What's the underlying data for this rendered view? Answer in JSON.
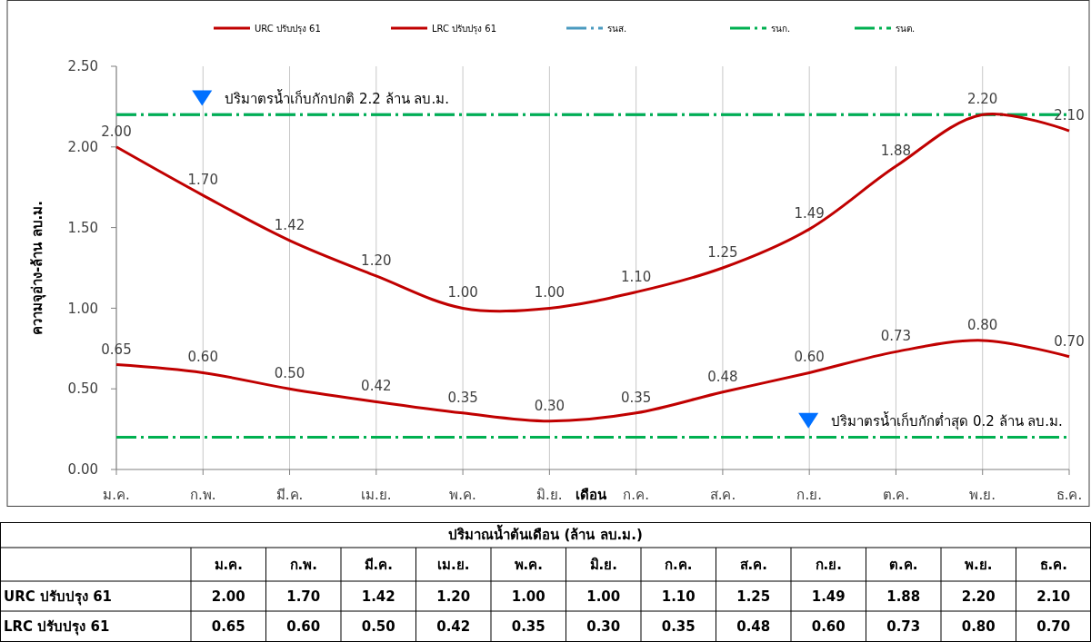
{
  "chart_data": {
    "type": "line",
    "xlabel": "เดือน",
    "ylabel": "ความจุอ่าง-ล้าน ลบ.ม.",
    "categories": [
      "ม.ค.",
      "ก.พ.",
      "มี.ค.",
      "เม.ย.",
      "พ.ค.",
      "มิ.ย.",
      "ก.ค.",
      "ส.ค.",
      "ก.ย.",
      "ต.ค.",
      "พ.ย.",
      "ธ.ค."
    ],
    "series": [
      {
        "name": "URC ปรับปรุง 61",
        "color": "#c00000",
        "values": [
          2.0,
          1.7,
          1.42,
          1.2,
          1.0,
          1.0,
          1.1,
          1.25,
          1.49,
          1.88,
          2.2,
          2.1
        ],
        "value_labels": [
          "2.00",
          "1.70",
          "1.42",
          "1.20",
          "1.00",
          "1.00",
          "1.10",
          "1.25",
          "1.49",
          "1.88",
          "2.20",
          "2.10"
        ]
      },
      {
        "name": "LRC ปรับปรุง 61",
        "color": "#c00000",
        "values": [
          0.65,
          0.6,
          0.5,
          0.42,
          0.35,
          0.3,
          0.35,
          0.48,
          0.6,
          0.73,
          0.8,
          0.7
        ],
        "value_labels": [
          "0.65",
          "0.60",
          "0.50",
          "0.42",
          "0.35",
          "0.30",
          "0.35",
          "0.48",
          "0.60",
          "0.73",
          "0.80",
          "0.70"
        ]
      }
    ],
    "ref_lines": [
      {
        "axis": "y",
        "value": 2.2,
        "label": "รนส.",
        "color": "#4a9abf",
        "line_style": "dashed"
      },
      {
        "axis": "y",
        "value": 2.2,
        "label": "รนก.",
        "color": "#00b050",
        "line_style": "dashed"
      },
      {
        "axis": "y",
        "value": 0.2,
        "label": "รนต.",
        "color": "#00b050",
        "line_style": "dashed"
      }
    ],
    "annotations": [
      {
        "text": "ปริมาตรน้ำเก็บกักปกติ 2.2 ล้าน ลบ.ม.",
        "x": "ก.พ.",
        "y": 2.3
      },
      {
        "text": "ปริมาตรน้ำเก็บกักต่ำสุด 0.2 ล้าน ลบ.ม.",
        "x": "ก.ย.",
        "y": 0.3
      },
      "ปริมาณน้ำต้นเดือน (ล้าน ลบ.ม.)"
    ],
    "ylim": [
      0,
      2.5
    ],
    "yticks": [
      {
        "value": 0,
        "label": "0.00"
      },
      {
        "value": 0.5,
        "label": "0.50"
      },
      {
        "value": 1,
        "label": "1.00"
      },
      {
        "value": 1.5,
        "label": "1.50"
      },
      {
        "value": 2,
        "label": "2.00"
      },
      {
        "value": 2.5,
        "label": "2.50"
      }
    ],
    "grid": "x",
    "legend": "top",
    "marker": "none",
    "line_style": "solid"
  }
}
